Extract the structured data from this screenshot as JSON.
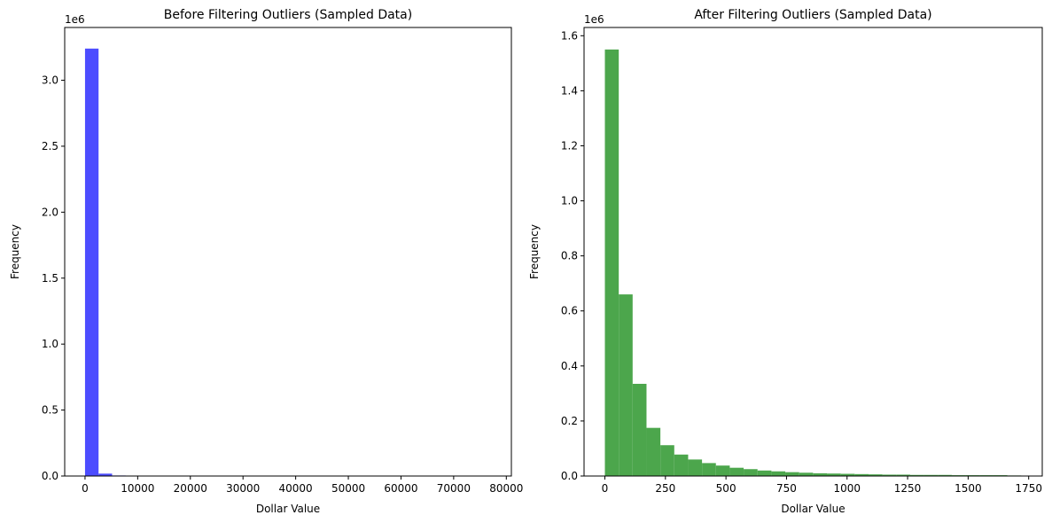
{
  "chart_data": [
    {
      "type": "bar",
      "title": "Before Filtering Outliers (Sampled Data)",
      "xlabel": "Dollar Value",
      "ylabel": "Frequency",
      "y_offset_label": "1e6",
      "color": "#4c4cff",
      "xlim": [
        -3860,
        80960
      ],
      "ylim": [
        0,
        3.4
      ],
      "xticks": [
        0,
        10000,
        20000,
        30000,
        40000,
        50000,
        60000,
        70000,
        80000
      ],
      "xtick_labels": [
        "0",
        "10000",
        "20000",
        "30000",
        "40000",
        "50000",
        "60000",
        "70000",
        "80000"
      ],
      "yticks": [
        0.0,
        0.5,
        1.0,
        1.5,
        2.0,
        2.5,
        3.0
      ],
      "ytick_labels": [
        "0.0",
        "0.5",
        "1.0",
        "1.5",
        "2.0",
        "2.5",
        "3.0"
      ],
      "bin_edges": [
        0,
        2570,
        5140,
        7710,
        10280,
        12850,
        15420,
        17990,
        20560,
        23130,
        25700,
        28270,
        30840,
        33410,
        35980,
        38550,
        41120,
        43690,
        46260,
        48830,
        51400,
        53970,
        56540,
        59110,
        61680,
        64250,
        66820,
        69390,
        71960,
        74530,
        77100
      ],
      "values": [
        3.24,
        0.018,
        0.004,
        0.0015,
        0.0008,
        0.0005,
        0.0003,
        0.0002,
        0.0001,
        0.0001,
        0.0001,
        0.0,
        0.0,
        0.0,
        0.0,
        0.0,
        0.0,
        0.0,
        0.0,
        0.0,
        0.0,
        0.0,
        0.0,
        0.0,
        0.0,
        0.0,
        0.0,
        0.0,
        0.0,
        0.0
      ],
      "grid": false
    },
    {
      "type": "bar",
      "title": "After Filtering Outliers (Sampled Data)",
      "xlabel": "Dollar Value",
      "ylabel": "Frequency",
      "y_offset_label": "1e6",
      "color": "#4ca64c",
      "xlim": [
        -86,
        1806
      ],
      "ylim": [
        0,
        1.63
      ],
      "xticks": [
        0,
        250,
        500,
        750,
        1000,
        1250,
        1500,
        1750
      ],
      "xtick_labels": [
        "0",
        "250",
        "500",
        "750",
        "1000",
        "1250",
        "1500",
        "1750"
      ],
      "yticks": [
        0.0,
        0.2,
        0.4,
        0.6,
        0.8,
        1.0,
        1.2,
        1.4,
        1.6
      ],
      "ytick_labels": [
        "0.0",
        "0.2",
        "0.4",
        "0.6",
        "0.8",
        "1.0",
        "1.2",
        "1.4",
        "1.6"
      ],
      "bin_edges": [
        0,
        57.3,
        114.6,
        171.9,
        229.2,
        286.5,
        343.8,
        401.1,
        458.4,
        515.7,
        573,
        630.3,
        687.6,
        744.9,
        802.2,
        859.5,
        916.8,
        974.1,
        1031.4,
        1088.7,
        1146,
        1203.3,
        1260.6,
        1317.9,
        1375.2,
        1432.5,
        1489.8,
        1547.1,
        1604.4,
        1661.7,
        1719
      ],
      "values": [
        1.55,
        0.66,
        0.335,
        0.175,
        0.112,
        0.078,
        0.06,
        0.047,
        0.038,
        0.03,
        0.025,
        0.02,
        0.017,
        0.014,
        0.012,
        0.01,
        0.009,
        0.008,
        0.007,
        0.006,
        0.005,
        0.005,
        0.004,
        0.004,
        0.004,
        0.003,
        0.003,
        0.003,
        0.003,
        0.002
      ],
      "grid": false
    }
  ]
}
